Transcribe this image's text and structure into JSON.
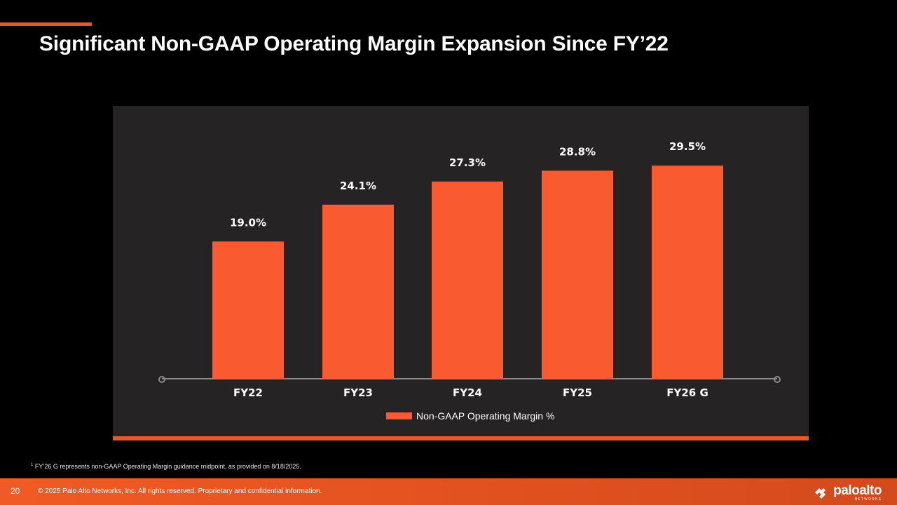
{
  "slide": {
    "title": "Significant Non-GAAP Operating Margin Expansion Since FY’22",
    "footnote_marker": "1",
    "footnote_text": " FY’26 G represents non-GAAP Operating Margin guidance midpoint, as provided on 8/18/2025.",
    "page_number": "20",
    "copyright": "© 2025 Palo Alto Networks, Inc. All rights reserved. Proprietary and confidential information.",
    "logo_word": "paloalto",
    "logo_sub": "NETWORKS",
    "logo_icon": "paloalto-logo-icon"
  },
  "colors": {
    "background": "#000000",
    "panel": "#252324",
    "bar": "#fa5a30",
    "accent": "#e8572a",
    "axis": "#8a8a8a"
  },
  "chart_data": {
    "type": "bar",
    "categories": [
      "FY22",
      "FY23",
      "FY24",
      "FY25",
      "FY26 G"
    ],
    "values": [
      19.0,
      24.1,
      27.3,
      28.8,
      29.5
    ],
    "labels": [
      "19.0%",
      "24.1%",
      "27.3%",
      "28.8%",
      "29.5%"
    ],
    "series_name": "Non-GAAP Operating Margin %",
    "title": "",
    "xlabel": "",
    "ylabel": "",
    "ylim": [
      0,
      30
    ],
    "grid": false,
    "legend": "bottom-center"
  }
}
